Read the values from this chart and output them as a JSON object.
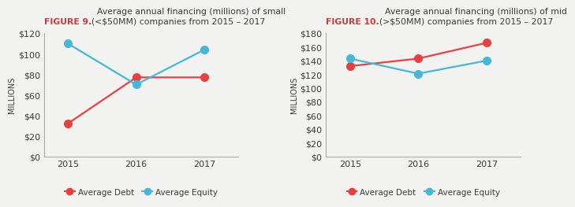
{
  "fig9": {
    "title_bold": "FIGURE 9.",
    "title_rest": "  Average annual financing (millions) of small\n(<$50MM) companies from 2015 – 2017",
    "years": [
      2015,
      2016,
      2017
    ],
    "debt": [
      32,
      77,
      77
    ],
    "equity": [
      110,
      70,
      104
    ],
    "ylim": [
      0,
      120
    ],
    "yticks": [
      0,
      20,
      40,
      60,
      80,
      100,
      120
    ],
    "ylabel": "MILLIONS"
  },
  "fig10": {
    "title_bold": "FIGURE 10.",
    "title_rest": "  Average annual financing (millions) of mid\n(>$50MM) companies from 2015 – 2017",
    "years": [
      2015,
      2016,
      2017
    ],
    "debt": [
      132,
      143,
      166
    ],
    "equity": [
      143,
      121,
      140
    ],
    "ylim": [
      0,
      180
    ],
    "yticks": [
      0,
      20,
      40,
      60,
      80,
      100,
      120,
      140,
      160,
      180
    ],
    "ylabel": "MILLIONS"
  },
  "debt_color": "#e84040",
  "equity_color": "#45b8d8",
  "bg_color": "#f2f2f0",
  "title_bold_color": "#d0393b",
  "title_rest_color": "#3a3a3a",
  "legend_debt": "Average Debt",
  "legend_equity": "Average Equity",
  "line_width": 1.6,
  "marker_size": 7
}
